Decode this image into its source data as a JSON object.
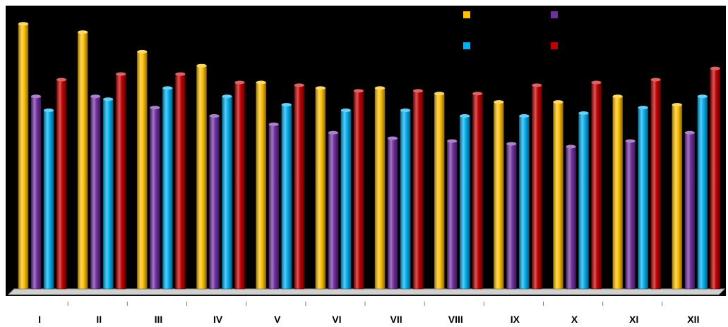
{
  "chart_data": {
    "type": "bar",
    "categories": [
      "I",
      "II",
      "III",
      "IV",
      "V",
      "VI",
      "VII",
      "VIII",
      "IX",
      "X",
      "XI",
      "XII"
    ],
    "ylim": [
      0,
      100
    ],
    "grid": false,
    "legend_position": "top-right",
    "series": [
      {
        "color": "#FFC000",
        "values": [
          95,
          92,
          85,
          80,
          74,
          72,
          72,
          70,
          67,
          67,
          69,
          66
        ]
      },
      {
        "color": "#7030A0",
        "values": [
          69,
          69,
          65,
          62,
          59,
          56,
          54,
          53,
          52,
          51,
          53,
          56
        ]
      },
      {
        "color": "#00B0F0",
        "values": [
          64,
          68,
          72,
          69,
          66,
          64,
          64,
          62,
          62,
          63,
          65,
          69
        ]
      },
      {
        "color": "#C00000",
        "values": [
          75,
          77,
          77,
          74,
          73,
          71,
          71,
          70,
          73,
          74,
          75,
          79
        ]
      }
    ]
  }
}
